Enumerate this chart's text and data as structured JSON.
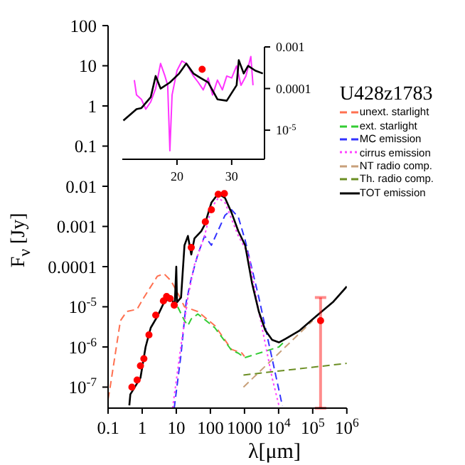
{
  "chart_data": [
    {
      "type": "line",
      "xlabel": "λ[μm]",
      "ylabel": "F$_{ν}$ [Jy]",
      "legend_title": "U428z1783",
      "legend": "top right",
      "log": "xy",
      "xlim": [
        0.1,
        1000000
      ],
      "xticks": [
        0.1,
        1,
        10,
        100,
        1000,
        {
          "value": 10000,
          "label": "10$^{4}$"
        },
        {
          "value": 100000,
          "label": "10$^{5}$"
        },
        {
          "value": 1000000,
          "label": "10$^{6}$"
        }
      ],
      "ylim": [
        3e-08,
        100
      ],
      "yticks": [
        100,
        10,
        1,
        0.1,
        0.01,
        0.001,
        0.0001,
        {
          "value": 1e-05,
          "label": "10$^{-5}$"
        },
        {
          "value": 1e-06,
          "label": "10$^{-6}$"
        },
        {
          "value": 1e-07,
          "label": "10$^{-7}$"
        }
      ],
      "series": [
        {
          "name": "unext. starlight",
          "color": "#ff7050",
          "line_style": "dashed",
          "x": [
            0.1,
            0.115,
            0.23,
            0.35,
            0.71,
            1.12,
            2.8,
            4.4,
            6.9,
            11,
            17.4,
            43,
            135,
            417,
            832,
            1000
          ],
          "values": [
            5e-08,
            1e-07,
            4.5e-06,
            7.6e-06,
            8.7e-06,
            1.7e-05,
            5.8e-05,
            6.6e-05,
            4.5e-05,
            2.2e-05,
            1e-05,
            7.6e-06,
            3.4e-06,
            8.7e-07,
            7.1e-07,
            5.8e-07
          ]
        },
        {
          "name": "ext. starlight",
          "color": "#33cc33",
          "line_style": "dashed",
          "x": [
            11,
            17.4,
            21.9,
            27.5,
            43,
            135,
            417,
            661,
            1000,
            10200,
            14000
          ],
          "values": [
            1e-05,
            4.5e-06,
            3.4e-06,
            5e-06,
            6.6e-06,
            3e-06,
            8.3e-07,
            7e-07,
            5.4e-07,
            1e-06,
            1.3e-06
          ]
        },
        {
          "name": "MC emission",
          "color": "#3333ff",
          "line_style": "dashed",
          "x": [
            8.7,
            13.8,
            19.5,
            27.5,
            42.7,
            67.6,
            107,
            269,
            417,
            661,
            1047,
            2630,
            6460,
            12900
          ],
          "values": [
            3e-08,
            6.6e-07,
            1.3e-05,
            5.1e-05,
            0.0002,
            0.00058,
            0.00034,
            0.0019,
            0.0026,
            0.0017,
            0.00045,
            1.7e-05,
            5.1e-07,
            3.4e-08
          ]
        },
        {
          "name": "cirrus emission",
          "color": "#ff44ff",
          "line_style": "dotted",
          "x": [
            7.8,
            13.8,
            21.9,
            34,
            67.6,
            107,
            170,
            269,
            661,
            1318,
            2630,
            6460,
            10200
          ],
          "values": [
            3e-08,
            1.1e-06,
            1.7e-05,
            0.00011,
            0.00058,
            0.0029,
            0.0051,
            0.0039,
            0.00058,
            0.0002,
            7.6e-06,
            1.7e-07,
            3.5e-08
          ]
        },
        {
          "name": "NT radio comp.",
          "color": "#c8a07a",
          "line_style": "dashed",
          "x": [
            933,
            100000
          ],
          "values": [
            1e-07,
            4.5e-06
          ]
        },
        {
          "name": "Th. radio comp.",
          "color": "#6b8e23",
          "line_style": "dashed",
          "x": [
            933,
            1000000
          ],
          "values": [
            2e-07,
            3.9e-07
          ]
        },
        {
          "name": "TOT emission",
          "color": "#000000",
          "line_style": "solid",
          "x": [
            0.42,
            0.45,
            0.89,
            1.26,
            1.78,
            2.8,
            4.4,
            6.9,
            9,
            10,
            10.5,
            13.8,
            17.4,
            21.9,
            27.5,
            34,
            54,
            68,
            107,
            170,
            269,
            417,
            661,
            1047,
            1660,
            2630,
            4070,
            6460,
            10200,
            16200,
            39800,
            126000,
            389000,
            1000000
          ],
          "values": [
            3.5e-08,
            6.6e-08,
            1.7e-07,
            1e-06,
            3e-06,
            5.8e-06,
            1.3e-05,
            1.7e-05,
            1.1e-05,
            0.0001,
            1.3e-05,
            1.7e-05,
            0.00034,
            0.00058,
            0.0002,
            0.0005,
            0.00076,
            0.0011,
            0.0039,
            0.0066,
            0.0051,
            0.0022,
            0.00076,
            0.00034,
            3.9e-05,
            7.6e-06,
            2.6e-06,
            1.5e-06,
            1.3e-06,
            1.6e-06,
            2.5e-06,
            5.8e-06,
            1.3e-05,
            3.2e-05
          ]
        },
        {
          "type": "scatter",
          "color": "#ff0000",
          "marker": "circle",
          "x": [
            0.5,
            0.71,
            0.89,
            1.12,
            1.58,
            2.5,
            4.2,
            5.2,
            6.6,
            8.7,
            27.5,
            71,
            107,
            170,
            257,
            170000
          ],
          "values": [
            1e-07,
            1.5e-07,
            3.4e-07,
            5.1e-07,
            2e-06,
            6.2e-06,
            1.4e-05,
            1.8e-05,
            1.6e-05,
            1.1e-05,
            0.0003,
            0.0013,
            0.0026,
            0.0063,
            0.0066,
            4.5e-06
          ],
          "errors": [
            null,
            null,
            null,
            null,
            null,
            null,
            null,
            null,
            null,
            null,
            null,
            null,
            null,
            null,
            null,
            [
              3e-08,
              1.7e-05
            ]
          ]
        }
      ]
    },
    {
      "type": "line",
      "log": "y",
      "xlim": [
        10,
        36
      ],
      "xticks": [
        20,
        30
      ],
      "ylim": [
        2e-06,
        0.001
      ],
      "yticks": [
        0.001,
        0.0001,
        {
          "value": 1e-05,
          "label": "10$^{-5}$"
        }
      ],
      "series": [
        {
          "color": "#ff33ff",
          "line_style": "solid",
          "x": [
            12.2,
            12.6,
            13.5,
            14.3,
            15.2,
            16.1,
            17,
            17.8,
            18.3,
            18.7,
            19.1,
            20,
            20.9,
            21.7,
            23,
            23.9,
            24.8,
            25.7,
            26.5,
            27.4,
            28.3,
            29.1,
            30,
            30.9,
            31.7,
            32.6,
            33.5,
            33.9
          ],
          "values": [
            0.00016,
            7e-05,
            5.5e-05,
            3.2e-05,
            4.8e-05,
            0.0001,
            0.0004,
            0.0002,
            0.00012,
            3.2e-06,
            7e-05,
            0.00027,
            0.00046,
            0.0004,
            0.0002,
            0.00014,
            9.3e-05,
            0.00018,
            7e-05,
            0.00016,
            9.3e-05,
            0.0002,
            0.00018,
            0.00035,
            0.00012,
            0.0002,
            0.00059,
            0.00012
          ]
        },
        {
          "color": "#000000",
          "line_style": "solid",
          "x": [
            10.2,
            12.6,
            13.5,
            15.2,
            16.1,
            17,
            18.7,
            20.4,
            21.7,
            23,
            24.3,
            25.7,
            27.4,
            29.1,
            30.9,
            31.3,
            32.2,
            33,
            34.3,
            35.7
          ],
          "values": [
            1.7e-05,
            3.2e-05,
            3.4e-05,
            6.2e-05,
            0.0002,
            0.0001,
            0.00014,
            0.00023,
            0.0004,
            0.00023,
            0.00018,
            0.00014,
            5.5e-05,
            5.1e-05,
            0.00012,
            0.00048,
            0.00023,
            0.00035,
            0.00027,
            0.00023
          ]
        },
        {
          "type": "scatter",
          "color": "#ff0000",
          "marker": "circle",
          "x": [
            24.6
          ],
          "values": [
            0.00029
          ]
        }
      ]
    }
  ]
}
